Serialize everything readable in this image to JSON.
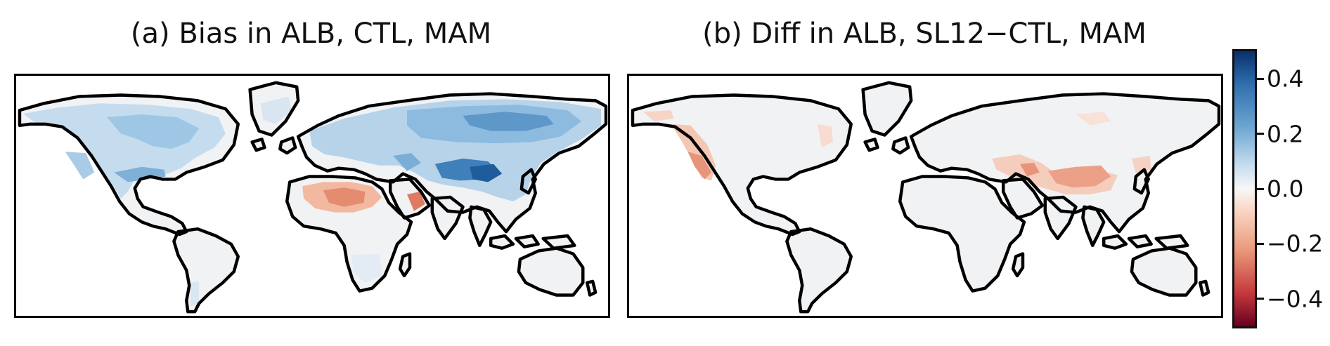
{
  "panels": [
    {
      "id": "a",
      "title": "(a) Bias in ALB, CTL, MAM"
    },
    {
      "id": "b",
      "title": "(b) Diff in ALB, SL12−CTL, MAM"
    }
  ],
  "colorbar": {
    "colormap": "red-white-blue diverging",
    "range": [
      -0.5,
      0.5
    ],
    "ticks": [
      {
        "value": 0.4,
        "label": "0.4"
      },
      {
        "value": 0.2,
        "label": "0.2"
      },
      {
        "value": 0.0,
        "label": "0.0"
      },
      {
        "value": -0.2,
        "label": "−0.2"
      },
      {
        "value": -0.4,
        "label": "−0.4"
      }
    ],
    "colors": {
      "max": "#08306b",
      "mid": "#f7f7f7",
      "min": "#67001f"
    }
  },
  "map": {
    "land_color": "#f2f2f2",
    "coast_color": "#000000"
  }
}
